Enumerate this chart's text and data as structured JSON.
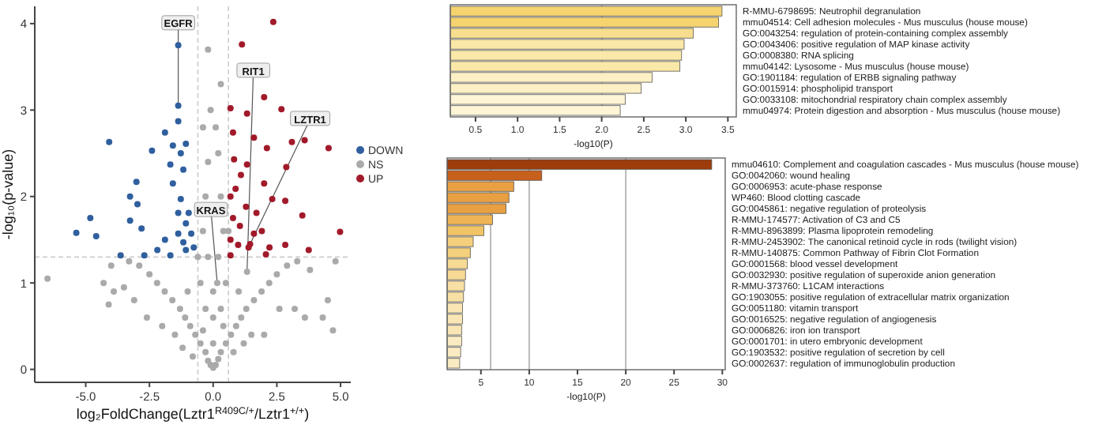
{
  "chart_data": [
    {
      "type": "scatter",
      "xlabel": "log₂FoldChange(Lztr1$^{R409C/+}$/Lztr1$^{+/+}$)",
      "ylabel": "-log₁₀(p-value)",
      "xlim": [
        -7,
        5.4
      ],
      "ylim": [
        -0.15,
        4.2
      ],
      "xticks": [
        {
          "value": -5,
          "label": "-5.0"
        },
        {
          "value": -2.5,
          "label": "-2.5"
        },
        {
          "value": 0,
          "label": "0.0"
        },
        {
          "value": 2.5,
          "label": "2.5"
        },
        {
          "value": 5,
          "label": "5.0"
        }
      ],
      "yticks": [
        0,
        1,
        2,
        3,
        4
      ],
      "grid": false,
      "legend": "right",
      "marker": "circle",
      "ref_lines": [
        {
          "axis": "x",
          "value": -0.6,
          "line_style": "dashed",
          "color": "#cccccc"
        },
        {
          "axis": "x",
          "value": 0.6,
          "line_style": "dashed",
          "color": "#cccccc"
        },
        {
          "axis": "y",
          "value": 1.3,
          "line_style": "dashed",
          "color": "#cccccc"
        }
      ],
      "annotations": [
        {
          "text": "EGFR",
          "x": -1.37,
          "y": 3.05
        },
        {
          "text": "KRAS",
          "x": 0.16,
          "y": 1.0
        },
        {
          "text": "RIT1",
          "x": 1.33,
          "y": 1.13
        },
        {
          "text": "LZTR1",
          "x": 1.45,
          "y": 1.45
        }
      ],
      "series": [
        {
          "name": "DOWN",
          "color": "#2f5f9e",
          "x": [
            -4.08,
            -2.4,
            -1.89,
            -1.58,
            -1.37,
            -1.07,
            -3.01,
            -1.68,
            -3.26,
            -2.97,
            -4.82,
            -3.26,
            -1.58,
            -1.27,
            -1.37,
            -1.07,
            -0.86,
            -1.89,
            -2.19,
            -5.37,
            -4.59,
            -2.81,
            -1.17,
            -0.76,
            -1.07,
            -1.68,
            -2.7,
            -3.63,
            -1.37,
            -0.96,
            -1.17,
            -1.27,
            -1.37,
            -1.37
          ],
          "values": [
            2.63,
            2.53,
            2.74,
            2.59,
            2.87,
            2.61,
            2.17,
            2.37,
            2.0,
            1.91,
            1.75,
            1.72,
            2.15,
            1.97,
            1.81,
            1.69,
            1.57,
            1.5,
            1.38,
            1.58,
            1.54,
            1.63,
            1.47,
            1.41,
            1.38,
            1.32,
            1.32,
            1.32,
            1.57,
            1.81,
            2.31,
            2.5,
            3.05,
            3.75
          ]
        },
        {
          "name": "NS",
          "color": "#aaaaaa",
          "x": [
            0,
            -0.1,
            0.1,
            -0.2,
            0.2,
            -0.3,
            0.3,
            -0.5,
            0.5,
            -0.7,
            0.7,
            -0.9,
            0.9,
            -1.1,
            1.1,
            -1.3,
            1.3,
            -1.6,
            1.6,
            -1.9,
            1.9,
            -2.2,
            2.2,
            -2.5,
            2.5,
            -2.9,
            2.9,
            -3.3,
            3.3,
            0,
            0,
            0,
            -0.3,
            0.3,
            -0.5,
            0.5,
            -0.2,
            0.2,
            -0.4,
            0.4,
            -0.3,
            0.3,
            -0.2,
            0.2,
            0.1,
            -0.1,
            -0.4,
            0.3,
            -0.2,
            -0.6,
            0.6,
            -1.0,
            1.0,
            -1.5,
            1.5,
            -2.0,
            2.0,
            -2.6,
            2.6,
            -3.1,
            3.2,
            -3.9,
            3.6,
            -4.1,
            -4.3,
            -6.5,
            4.5,
            4.3,
            4.7,
            -3.5,
            -0.8,
            0.8,
            -1.2,
            1.2,
            -0.4,
            0.4,
            -4.0,
            3.8,
            4.8,
            0.16,
            1.33
          ],
          "values": [
            0.02,
            0.05,
            0.05,
            0.1,
            0.12,
            0.2,
            0.2,
            0.3,
            0.3,
            0.4,
            0.4,
            0.5,
            0.5,
            0.6,
            0.6,
            0.7,
            0.7,
            0.8,
            0.8,
            0.9,
            0.9,
            1.0,
            1.0,
            1.1,
            1.1,
            1.2,
            1.2,
            1.25,
            1.25,
            0.3,
            0.6,
            0.9,
            0.7,
            0.7,
            1.0,
            1.0,
            1.3,
            1.3,
            1.6,
            1.6,
            2.0,
            2.0,
            2.4,
            2.5,
            2.8,
            3.0,
            2.8,
            3.3,
            3.7,
            1.3,
            1.6,
            0.9,
            0.9,
            0.4,
            0.4,
            0.5,
            0.4,
            0.6,
            0.7,
            0.8,
            0.7,
            0.9,
            0.6,
            0.75,
            1.0,
            1.05,
            0.8,
            0.6,
            0.45,
            0.95,
            0.15,
            0.2,
            0.25,
            0.3,
            0.45,
            0.5,
            1.2,
            1.15,
            1.25,
            1.0,
            1.13
          ]
        },
        {
          "name": "UP",
          "color": "#a11a2a",
          "x": [
            2.36,
            1.13,
            2.0,
            2.68,
            0.68,
            1.33,
            0.78,
            1.6,
            3.09,
            3.59,
            4.53,
            2.11,
            2.87,
            0.82,
            1.33,
            1.09,
            2.0,
            0.88,
            2.32,
            2.83,
            0.68,
            1.29,
            1.7,
            3.5,
            0.78,
            1.05,
            1.6,
            1.91,
            4.98,
            0.68,
            0.98,
            1.39,
            2.21,
            2.83,
            0.68,
            2.07,
            3.75,
            1.45
          ],
          "values": [
            4.02,
            3.76,
            3.15,
            3.01,
            3.02,
            2.96,
            2.74,
            2.68,
            2.63,
            2.65,
            2.56,
            2.56,
            2.34,
            2.43,
            2.37,
            2.25,
            2.15,
            2.09,
            1.97,
            1.95,
            2.0,
            1.88,
            1.81,
            1.78,
            1.75,
            1.66,
            1.57,
            1.6,
            1.59,
            1.5,
            1.44,
            1.41,
            1.41,
            1.44,
            1.32,
            1.33,
            1.38,
            1.45
          ]
        }
      ]
    },
    {
      "type": "bar",
      "orientation": "horizontal",
      "xlabel": "-log10(P)",
      "xlim": [
        0.2,
        3.6
      ],
      "xticks": [
        {
          "value": 0.5,
          "label": "0.5"
        },
        {
          "value": 1,
          "label": "1.0"
        },
        {
          "value": 1.5,
          "label": "1.5"
        },
        {
          "value": 2,
          "label": "2.0"
        },
        {
          "value": 2.5,
          "label": "2.5"
        },
        {
          "value": 3,
          "label": "3.0"
        },
        {
          "value": 3.5,
          "label": "3.5"
        }
      ],
      "ref_lines": [
        {
          "axis": "x",
          "value": 2,
          "color": "#aaaaaa"
        }
      ],
      "categories": [
        "R-MMU-6798695: Neutrophil degranulation",
        "mmu04514: Cell adhesion molecules - Mus musculus (house mouse)",
        "GO:0043254: regulation of protein-containing complex assembly",
        "GO:0043406: positive regulation of MAP kinase activity",
        "GO:0008380: RNA splicing",
        "mmu04142: Lysosome - Mus musculus (house mouse)",
        "GO:1901184: regulation of ERBB signaling pathway",
        "GO:0015914: phospholipid transport",
        "GO:0033108: mitochondrial respiratory chain complex assembly",
        "mmu04974: Protein digestion and absorption - Mus musculus (house mouse)"
      ],
      "values": [
        3.43,
        3.39,
        3.09,
        2.98,
        2.95,
        2.93,
        2.6,
        2.47,
        2.28,
        2.22
      ],
      "colors": [
        "#f5d36f",
        "#f5d36f",
        "#f7de8e",
        "#fae8a8",
        "#fae8a8",
        "#fae8a8",
        "#fcf0c4",
        "#fcf0c4",
        "#fdf5d6",
        "#fdf5d6"
      ]
    },
    {
      "type": "bar",
      "orientation": "horizontal",
      "xlabel": "-log10(P)",
      "xlim": [
        1.5,
        30.3
      ],
      "xticks": [
        5,
        10,
        15,
        20,
        25,
        30
      ],
      "ref_lines": [
        {
          "axis": "x",
          "value": 6,
          "color": "#aaaaaa"
        },
        {
          "axis": "x",
          "value": 10,
          "color": "#aaaaaa"
        },
        {
          "axis": "x",
          "value": 20,
          "color": "#aaaaaa"
        }
      ],
      "categories": [
        "mmu04610: Complement and coagulation cascades - Mus musculus (house mouse)",
        "GO:0042060: wound healing",
        "GO:0006953: acute-phase response",
        "WP460: Blood clotting cascade",
        "GO:0045861: negative regulation of proteolysis",
        "R-MMU-174577: Activation of C3 and C5",
        "R-MMU-8963899: Plasma lipoprotein remodeling",
        "R-MMU-2453902: The canonical retinoid cycle in rods (twilight vision)",
        "R-MMU-140875: Common Pathway of Fibrin Clot Formation",
        "GO:0001568: blood vessel development",
        "GO:0032930: positive regulation of superoxide anion generation",
        "R-MMU-373760: L1CAM interactions",
        "GO:1903055: positive regulation of extracellular matrix organization",
        "GO:0051180: vitamin transport",
        "GO:0016525: negative regulation of angiogenesis",
        "GO:0006826: iron ion transport",
        "GO:0001701: in utero embryonic development",
        "GO:1903532: positive regulation of secretion by cell",
        "GO:0002637: regulation of immunoglobulin production"
      ],
      "values": [
        28.9,
        11.3,
        8.4,
        7.9,
        7.6,
        6.2,
        5.3,
        4.2,
        3.9,
        3.6,
        3.4,
        3.3,
        3.2,
        3.1,
        3.1,
        3.0,
        3.0,
        2.9,
        2.8
      ],
      "colors": [
        "#9c3d0b",
        "#c7601c",
        "#e8a042",
        "#e8a042",
        "#e8a042",
        "#eeb455",
        "#f2c466",
        "#f5d07c",
        "#f5d07c",
        "#f7da94",
        "#f7da94",
        "#f8e0a4",
        "#f8e0a4",
        "#f9e6b4",
        "#f9e6b4",
        "#f9e6b4",
        "#faebc2",
        "#faebc2",
        "#faebc2"
      ]
    }
  ]
}
